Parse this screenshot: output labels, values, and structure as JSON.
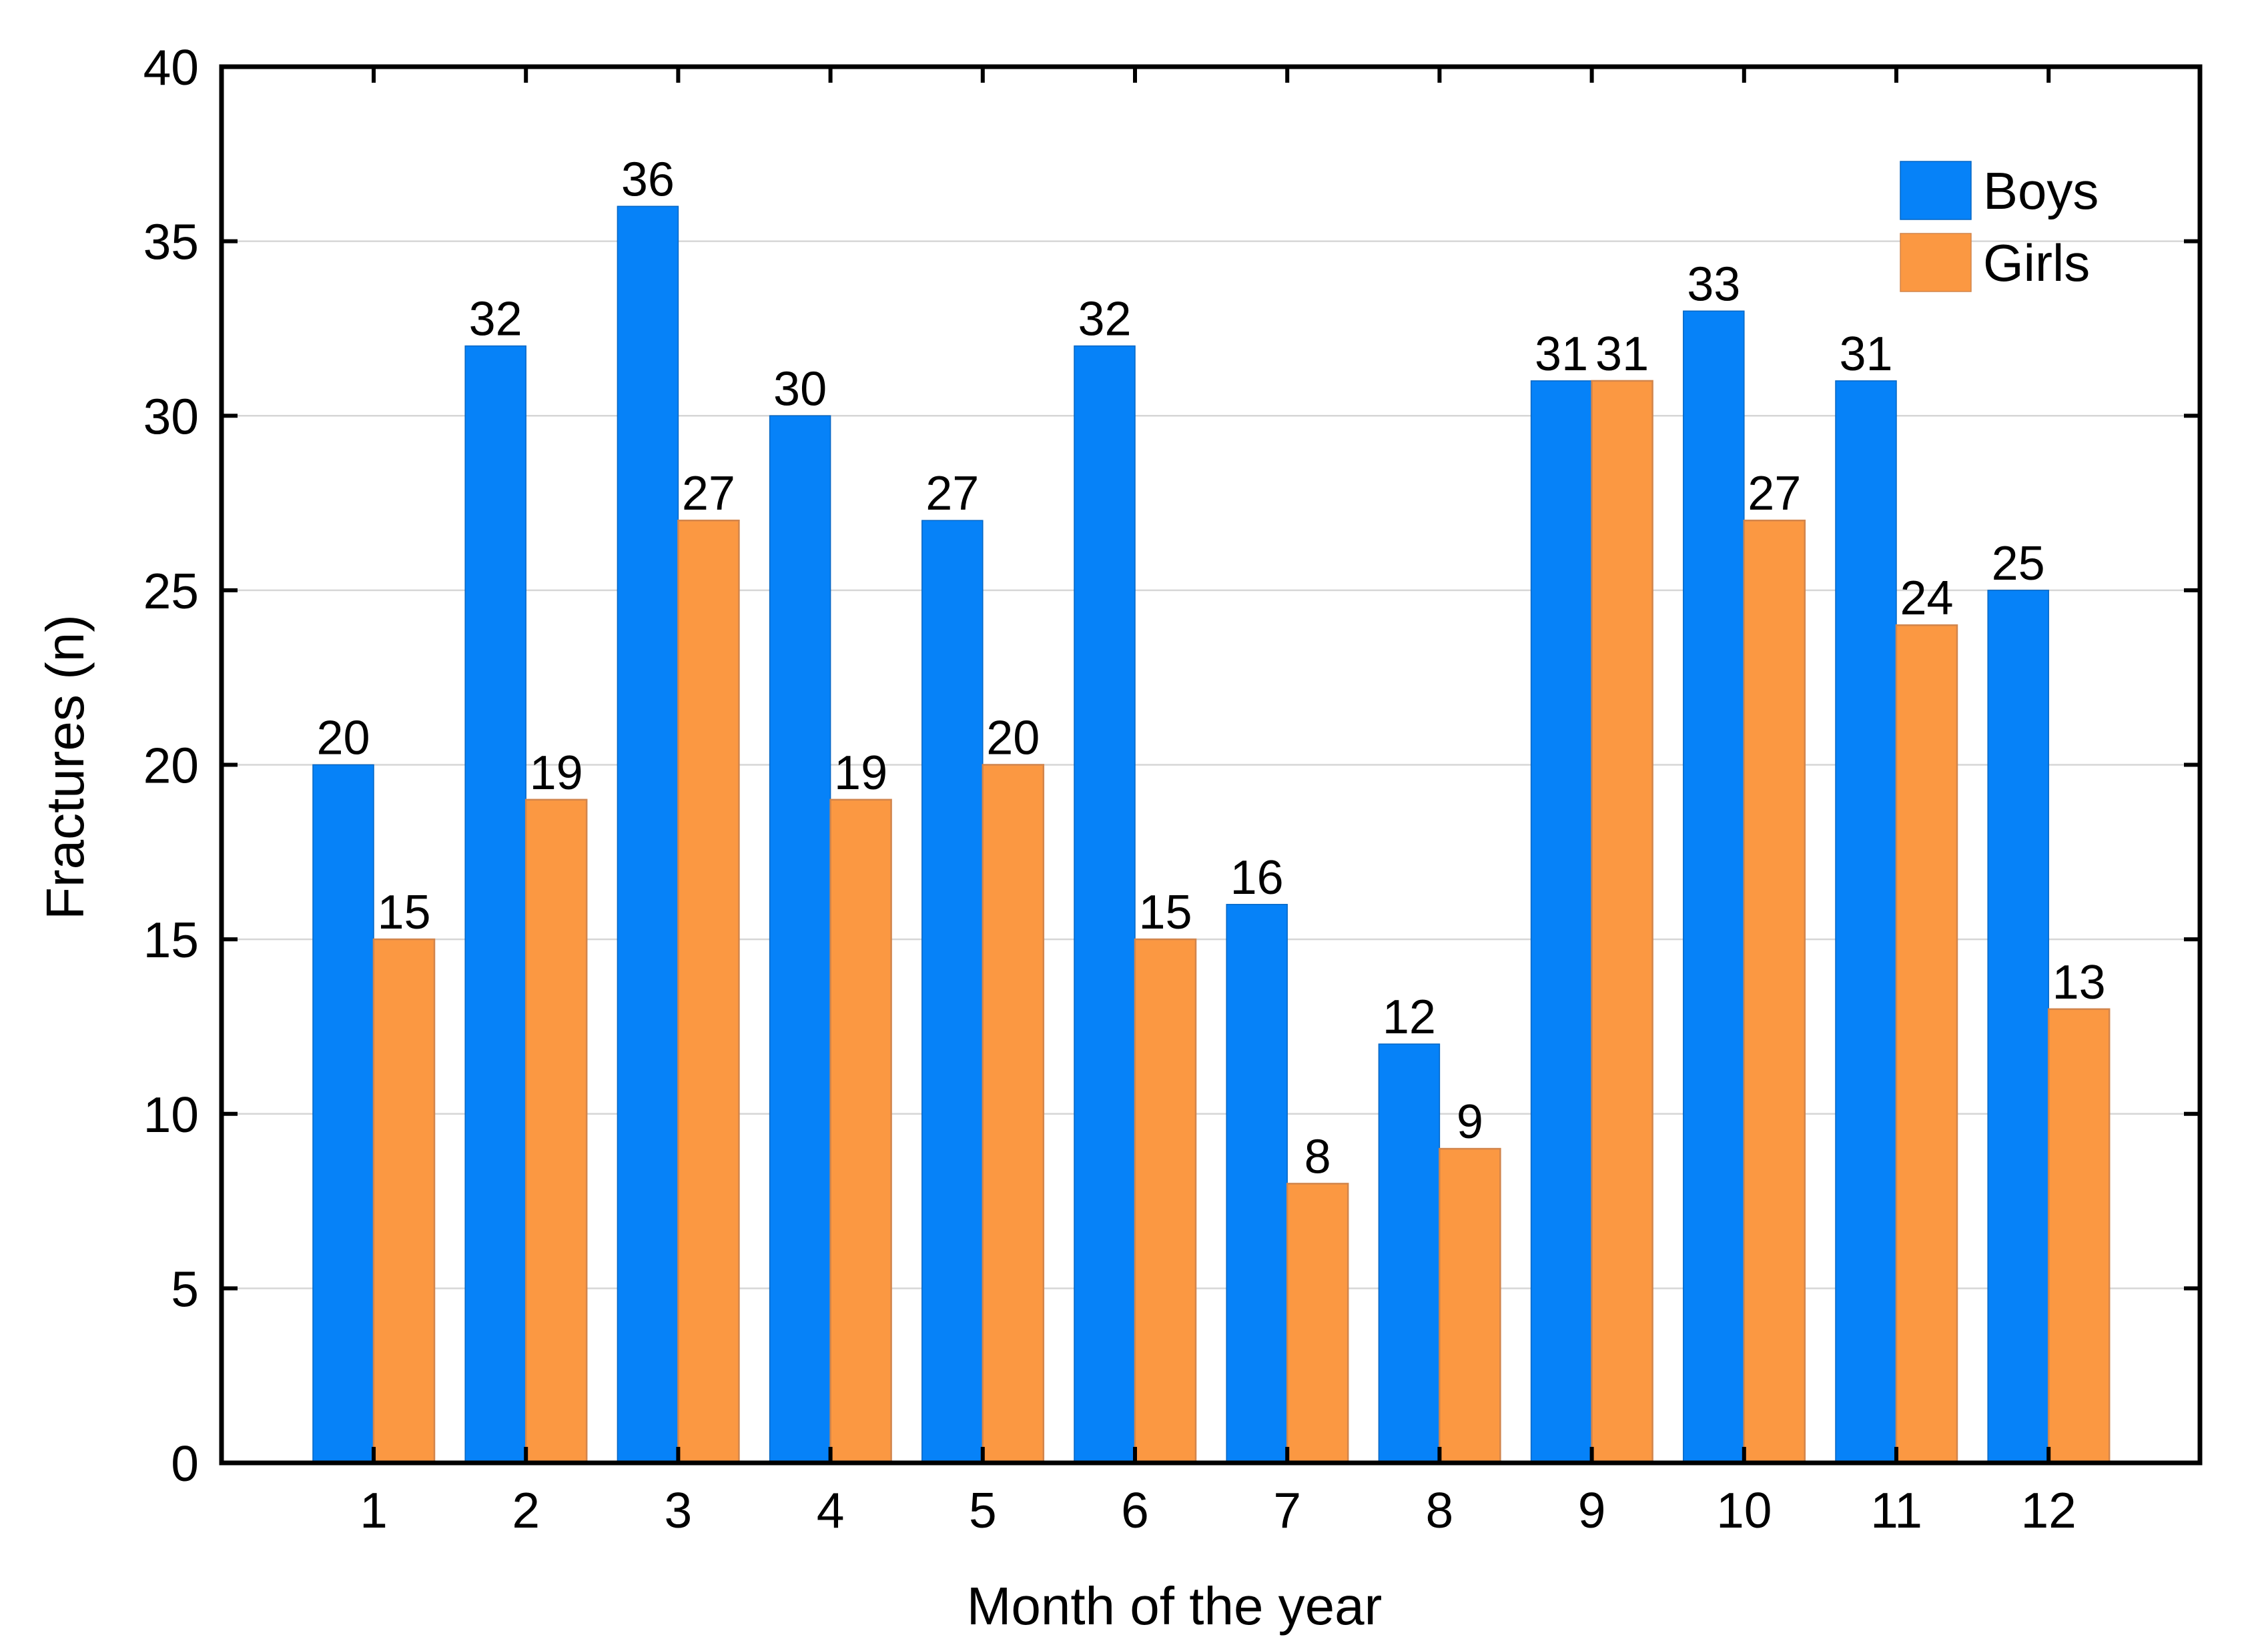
{
  "chart_data": {
    "type": "bar",
    "title": "",
    "categories": [
      "1",
      "2",
      "3",
      "4",
      "5",
      "6",
      "7",
      "8",
      "9",
      "10",
      "11",
      "12"
    ],
    "series": [
      {
        "name": "Boys",
        "color": "#0682F8",
        "edge_color": "#0566C4",
        "values": [
          20,
          32,
          36,
          30,
          27,
          32,
          16,
          12,
          31,
          33,
          31,
          25
        ]
      },
      {
        "name": "Girls",
        "color": "#FB9842",
        "edge_color": "#D2854C",
        "values": [
          15,
          19,
          27,
          19,
          20,
          15,
          8,
          9,
          31,
          27,
          24,
          13
        ]
      }
    ],
    "xlabel": "Month of the year",
    "ylabel": "Fractures (n)",
    "ylim": [
      0,
      40
    ],
    "ytick_step": 5,
    "yticks": [
      0,
      5,
      10,
      15,
      20,
      25,
      30,
      35,
      40
    ],
    "grid": "horizontal",
    "gridline_color": "#D6D6D6",
    "frame_color": "#000000",
    "text_color": "#000000",
    "background_color": "#FFFFFF",
    "bar_value_labels": true,
    "legend": {
      "position": "top-right"
    }
  }
}
